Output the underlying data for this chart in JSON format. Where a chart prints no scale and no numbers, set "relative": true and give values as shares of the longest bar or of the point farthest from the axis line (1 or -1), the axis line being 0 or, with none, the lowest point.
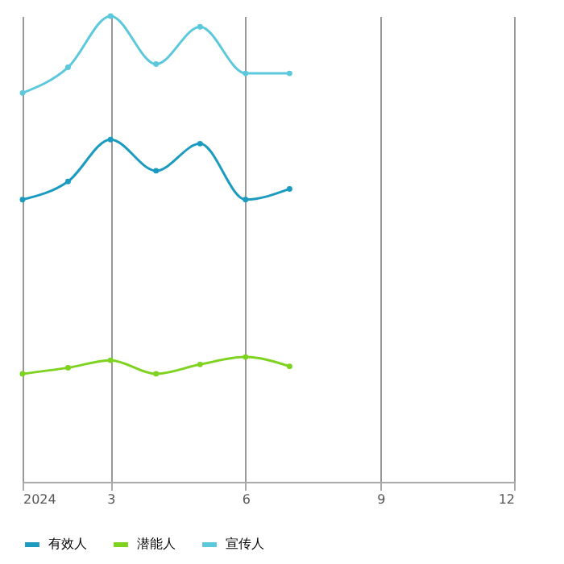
{
  "chart_data": {
    "type": "line",
    "relative": true,
    "x": [
      "2024-01",
      "2024-02",
      "2024-03",
      "2024-04",
      "2024-05",
      "2024-06",
      "2024-07"
    ],
    "xlim": [
      "2024-01",
      "2024-12"
    ],
    "xticks": [
      {
        "value": "2024-01",
        "label": "2024"
      },
      {
        "value": "2024-03",
        "label": "3"
      },
      {
        "value": "2024-06",
        "label": "6"
      },
      {
        "value": "2024-09",
        "label": "9"
      },
      {
        "value": "2024-12",
        "label": "12"
      }
    ],
    "series": [
      {
        "name": "有效人",
        "color": "#1a9bbf",
        "values": [
          0.606,
          0.645,
          0.735,
          0.668,
          0.726,
          0.606,
          0.629
        ]
      },
      {
        "name": "潜能人",
        "color": "#7ed321",
        "values": [
          0.232,
          0.245,
          0.261,
          0.232,
          0.252,
          0.268,
          0.248
        ]
      },
      {
        "name": "宣传人",
        "color": "#5bc8dc",
        "values": [
          0.835,
          0.89,
          1.0,
          0.897,
          0.977,
          0.877,
          0.877
        ]
      }
    ],
    "grid": "x",
    "legend": "bottom",
    "marker": "circle",
    "line_style": "solid"
  }
}
